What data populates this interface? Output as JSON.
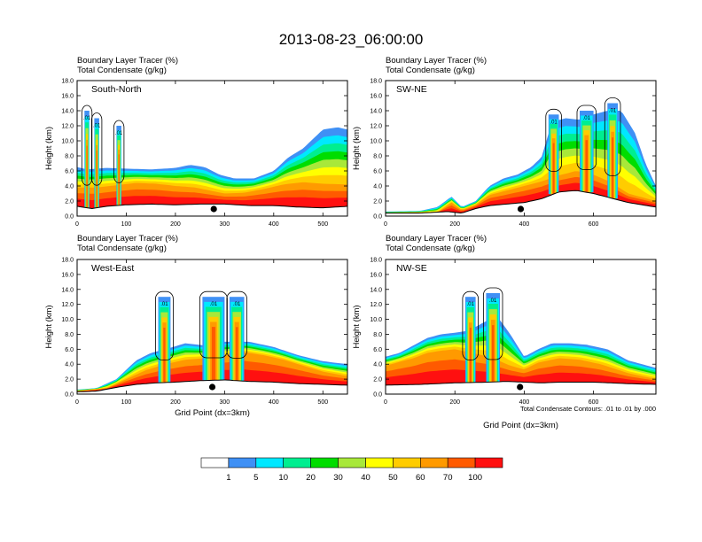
{
  "figure": {
    "title": "2013-08-23_06:00:00",
    "colorbar": {
      "levels": [
        "1",
        "5",
        "10",
        "20",
        "30",
        "40",
        "50",
        "60",
        "70",
        "100"
      ],
      "colors": [
        "#ffffff",
        "#3f90f5",
        "#00e8ff",
        "#00ee90",
        "#00dd00",
        "#a8e83a",
        "#ffff00",
        "#ffcc00",
        "#ff9a00",
        "#ff5a00",
        "#ff1010"
      ]
    },
    "contour_note": "Total Condensate Contours: .01 to .01 by .000",
    "contour_label": ".01",
    "station_marker": "filled-circle"
  },
  "chart_data": [
    {
      "type": "heatmap",
      "name": "South-North",
      "title_line1": "Boundary Layer Tracer   (%)",
      "title_line2": "Total Condensate   (g/kg)",
      "ylabel": "Height (km)",
      "xlabel": "",
      "xlim": [
        0,
        550
      ],
      "ylim": [
        0,
        18
      ],
      "xticks": [
        "0",
        "100",
        "200",
        "300",
        "400",
        "500"
      ],
      "yticks": [
        "0.0",
        "2.0",
        "4.0",
        "6.0",
        "8.0",
        "10.0",
        "12.0",
        "14.0",
        "16.0",
        "18.0"
      ],
      "station_x": 278,
      "terrain": [
        [
          0,
          1.3
        ],
        [
          30,
          1.0
        ],
        [
          60,
          1.3
        ],
        [
          100,
          1.5
        ],
        [
          150,
          1.6
        ],
        [
          200,
          1.5
        ],
        [
          250,
          1.6
        ],
        [
          300,
          1.6
        ],
        [
          350,
          1.4
        ],
        [
          400,
          1.4
        ],
        [
          450,
          1.2
        ],
        [
          500,
          1.1
        ],
        [
          550,
          1.3
        ]
      ],
      "tracer_top": [
        [
          0,
          6.5
        ],
        [
          20,
          6.2
        ],
        [
          60,
          6.4
        ],
        [
          100,
          6.3
        ],
        [
          150,
          6.2
        ],
        [
          200,
          6.4
        ],
        [
          230,
          6.8
        ],
        [
          260,
          6.5
        ],
        [
          290,
          5.5
        ],
        [
          320,
          5.0
        ],
        [
          360,
          5.0
        ],
        [
          400,
          6.0
        ],
        [
          430,
          7.8
        ],
        [
          460,
          9.0
        ],
        [
          500,
          11.5
        ],
        [
          530,
          11.8
        ],
        [
          550,
          11.5
        ]
      ],
      "red_top": [
        [
          0,
          3.8
        ],
        [
          40,
          3.8
        ],
        [
          80,
          4.1
        ],
        [
          120,
          4.4
        ],
        [
          160,
          4.3
        ],
        [
          200,
          4.0
        ],
        [
          240,
          3.8
        ],
        [
          270,
          3.4
        ],
        [
          300,
          3.0
        ],
        [
          340,
          3.1
        ],
        [
          380,
          3.6
        ],
        [
          420,
          4.2
        ],
        [
          460,
          4.5
        ],
        [
          500,
          4.3
        ],
        [
          550,
          4.2
        ]
      ],
      "deep_columns": [
        [
          15,
          25,
          14.0
        ],
        [
          35,
          45,
          13.0
        ],
        [
          80,
          90,
          12.0
        ]
      ]
    },
    {
      "type": "heatmap",
      "name": "SW-NE",
      "title_line1": "Boundary Layer Tracer   (%)",
      "title_line2": "Total Condensate   (g/kg)",
      "ylabel": "Height (km)",
      "xlabel": "",
      "xlim": [
        0,
        780
      ],
      "ylim": [
        0,
        18
      ],
      "xticks": [
        "0",
        "200",
        "400",
        "600"
      ],
      "yticks": [
        "0.0",
        "2.0",
        "4.0",
        "6.0",
        "8.0",
        "10.0",
        "12.0",
        "14.0",
        "16.0",
        "18.0"
      ],
      "station_x": 390,
      "terrain": [
        [
          0,
          0.4
        ],
        [
          100,
          0.4
        ],
        [
          180,
          0.6
        ],
        [
          220,
          0.4
        ],
        [
          260,
          1.0
        ],
        [
          300,
          1.4
        ],
        [
          350,
          1.6
        ],
        [
          400,
          1.8
        ],
        [
          450,
          2.3
        ],
        [
          500,
          3.2
        ],
        [
          550,
          3.4
        ],
        [
          600,
          3.0
        ],
        [
          650,
          2.4
        ],
        [
          700,
          1.8
        ],
        [
          780,
          1.2
        ]
      ],
      "tracer_top": [
        [
          0,
          0.6
        ],
        [
          100,
          0.7
        ],
        [
          150,
          1.2
        ],
        [
          190,
          2.6
        ],
        [
          220,
          1.2
        ],
        [
          260,
          2.0
        ],
        [
          300,
          4.0
        ],
        [
          340,
          5.0
        ],
        [
          380,
          5.5
        ],
        [
          420,
          6.5
        ],
        [
          450,
          7.8
        ],
        [
          480,
          12.5
        ],
        [
          520,
          13.0
        ],
        [
          560,
          12.8
        ],
        [
          600,
          13.5
        ],
        [
          640,
          14.0
        ],
        [
          680,
          14.0
        ],
        [
          720,
          11.0
        ],
        [
          750,
          7.0
        ],
        [
          780,
          4.0
        ]
      ],
      "red_top": [
        [
          0,
          0.4
        ],
        [
          150,
          0.5
        ],
        [
          190,
          1.8
        ],
        [
          220,
          0.8
        ],
        [
          260,
          1.5
        ],
        [
          300,
          2.8
        ],
        [
          350,
          3.4
        ],
        [
          400,
          4.0
        ],
        [
          450,
          4.6
        ],
        [
          500,
          5.4
        ],
        [
          550,
          6.0
        ],
        [
          600,
          5.5
        ],
        [
          650,
          4.5
        ],
        [
          700,
          3.0
        ],
        [
          780,
          2.0
        ]
      ],
      "deep_columns": [
        [
          470,
          500,
          13.5
        ],
        [
          560,
          600,
          14.0
        ],
        [
          640,
          670,
          15.0
        ]
      ]
    },
    {
      "type": "heatmap",
      "name": "West-East",
      "title_line1": "Boundary Layer Tracer   (%)",
      "title_line2": "Total Condensate   (g/kg)",
      "ylabel": "Height (km)",
      "xlabel": "Grid Point (dx=3km)",
      "xlim": [
        0,
        550
      ],
      "ylim": [
        0,
        18
      ],
      "xticks": [
        "0",
        "100",
        "200",
        "300",
        "400",
        "500"
      ],
      "yticks": [
        "0.0",
        "2.0",
        "4.0",
        "6.0",
        "8.0",
        "10.0",
        "12.0",
        "14.0",
        "16.0",
        "18.0"
      ],
      "station_x": 275,
      "terrain": [
        [
          0,
          0.3
        ],
        [
          40,
          0.4
        ],
        [
          80,
          0.9
        ],
        [
          120,
          1.3
        ],
        [
          160,
          1.5
        ],
        [
          200,
          1.6
        ],
        [
          250,
          1.8
        ],
        [
          300,
          1.9
        ],
        [
          350,
          1.7
        ],
        [
          400,
          1.6
        ],
        [
          450,
          1.4
        ],
        [
          500,
          1.3
        ],
        [
          550,
          1.2
        ]
      ],
      "tracer_top": [
        [
          0,
          0.6
        ],
        [
          40,
          0.8
        ],
        [
          80,
          2.0
        ],
        [
          120,
          4.5
        ],
        [
          150,
          5.5
        ],
        [
          180,
          6.0
        ],
        [
          220,
          6.8
        ],
        [
          260,
          6.5
        ],
        [
          300,
          7.0
        ],
        [
          350,
          7.0
        ],
        [
          400,
          6.3
        ],
        [
          450,
          5.2
        ],
        [
          500,
          4.4
        ],
        [
          550,
          4.0
        ]
      ],
      "red_top": [
        [
          0,
          0.4
        ],
        [
          60,
          0.8
        ],
        [
          100,
          2.0
        ],
        [
          140,
          3.2
        ],
        [
          180,
          4.0
        ],
        [
          220,
          4.6
        ],
        [
          260,
          4.8
        ],
        [
          300,
          5.2
        ],
        [
          340,
          5.6
        ],
        [
          380,
          5.2
        ],
        [
          420,
          4.6
        ],
        [
          460,
          3.8
        ],
        [
          500,
          3.0
        ],
        [
          550,
          2.4
        ]
      ],
      "deep_columns": [
        [
          165,
          190,
          13.0
        ],
        [
          255,
          300,
          13.0
        ],
        [
          310,
          340,
          13.0
        ]
      ]
    },
    {
      "type": "heatmap",
      "name": "NW-SE",
      "title_line1": "Boundary Layer Tracer   (%)",
      "title_line2": "Total Condensate   (g/kg)",
      "ylabel": "Height (km)",
      "xlabel": "Grid Point (dx=3km)",
      "xlim": [
        0,
        780
      ],
      "ylim": [
        0,
        18
      ],
      "xticks": [
        "0",
        "200",
        "400",
        "600"
      ],
      "yticks": [
        "0.0",
        "2.0",
        "4.0",
        "6.0",
        "8.0",
        "10.0",
        "12.0",
        "14.0",
        "16.0",
        "18.0"
      ],
      "station_x": 388,
      "terrain": [
        [
          0,
          1.2
        ],
        [
          100,
          1.3
        ],
        [
          200,
          1.5
        ],
        [
          300,
          1.6
        ],
        [
          350,
          1.7
        ],
        [
          400,
          1.6
        ],
        [
          450,
          1.5
        ],
        [
          500,
          1.6
        ],
        [
          600,
          1.6
        ],
        [
          700,
          1.4
        ],
        [
          780,
          1.3
        ]
      ],
      "tracer_top": [
        [
          0,
          5.0
        ],
        [
          40,
          5.5
        ],
        [
          80,
          6.5
        ],
        [
          120,
          7.5
        ],
        [
          160,
          8.0
        ],
        [
          200,
          8.2
        ],
        [
          240,
          8.5
        ],
        [
          280,
          9.5
        ],
        [
          320,
          10.5
        ],
        [
          360,
          8.0
        ],
        [
          400,
          5.0
        ],
        [
          440,
          6.0
        ],
        [
          480,
          6.8
        ],
        [
          530,
          6.8
        ],
        [
          580,
          6.6
        ],
        [
          640,
          6.0
        ],
        [
          700,
          4.5
        ],
        [
          780,
          3.5
        ]
      ],
      "red_top": [
        [
          0,
          3.8
        ],
        [
          40,
          4.3
        ],
        [
          80,
          4.8
        ],
        [
          120,
          5.5
        ],
        [
          160,
          5.8
        ],
        [
          200,
          6.0
        ],
        [
          240,
          5.6
        ],
        [
          300,
          5.0
        ],
        [
          360,
          3.8
        ],
        [
          400,
          3.3
        ],
        [
          440,
          4.2
        ],
        [
          500,
          4.8
        ],
        [
          560,
          4.6
        ],
        [
          620,
          4.0
        ],
        [
          700,
          2.8
        ],
        [
          780,
          2.0
        ]
      ],
      "deep_columns": [
        [
          230,
          260,
          13.0
        ],
        [
          290,
          330,
          13.5
        ]
      ]
    }
  ]
}
